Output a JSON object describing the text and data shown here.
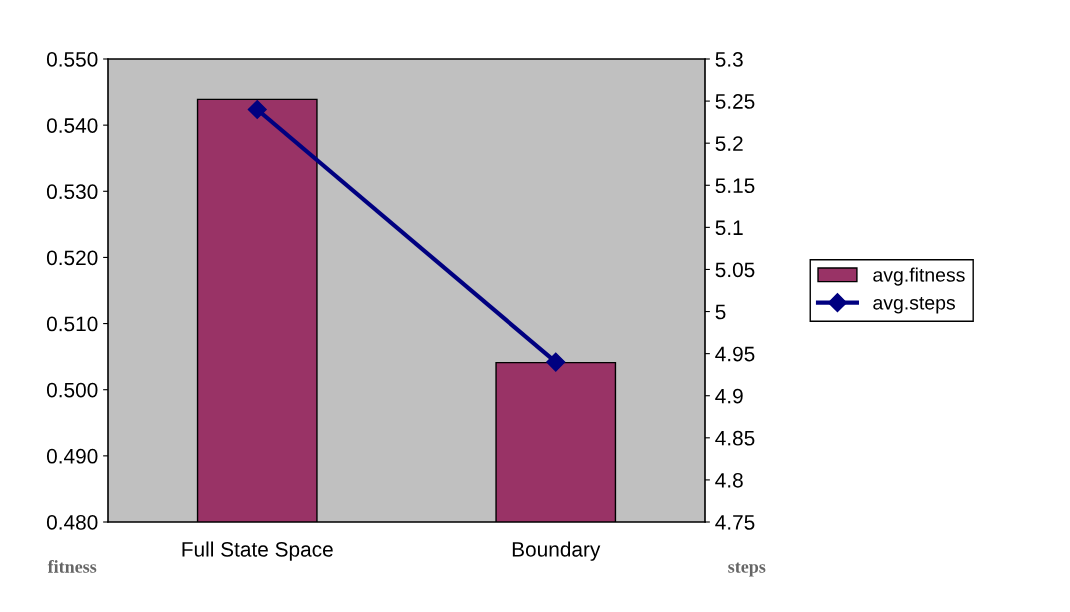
{
  "chart_data": {
    "type": "bar",
    "categories": [
      "Full State Space",
      "Boundary"
    ],
    "ylabel": "fitness",
    "y2label": "steps",
    "series": [
      {
        "name": "avg.fitness",
        "color": "#993366",
        "values": [
          0.5439,
          0.5041
        ]
      },
      {
        "name": "avg.steps",
        "type": "line",
        "axis": "y2",
        "color": "#000080",
        "marker": "diamond",
        "values": [
          5.24,
          4.94
        ]
      }
    ],
    "ylim": [
      0.48,
      0.55
    ],
    "yticks": [
      {
        "value": 0.48,
        "label": "0.480"
      },
      {
        "value": 0.49,
        "label": "0.490"
      },
      {
        "value": 0.5,
        "label": "0.500"
      },
      {
        "value": 0.51,
        "label": "0.510"
      },
      {
        "value": 0.52,
        "label": "0.520"
      },
      {
        "value": 0.53,
        "label": "0.530"
      },
      {
        "value": 0.54,
        "label": "0.540"
      },
      {
        "value": 0.55,
        "label": "0.550"
      }
    ],
    "y2lim": [
      4.75,
      5.3
    ],
    "y2ticks": [
      4.75,
      4.8,
      4.85,
      4.9,
      4.95,
      5,
      5.05,
      5.1,
      5.15,
      5.2,
      5.25,
      5.3
    ],
    "grid": false,
    "legend": "right"
  }
}
